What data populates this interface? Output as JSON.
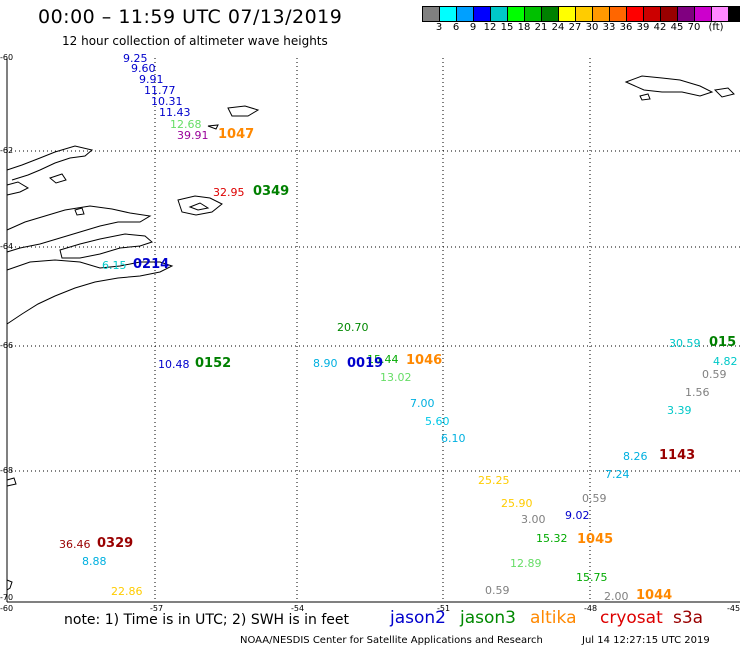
{
  "header": {
    "title": "00:00 – 11:59 UTC 07/13/2019",
    "subtitle": "12 hour collection of altimeter wave heights"
  },
  "legend": {
    "colors": [
      "#808080",
      "#00ffff",
      "#00a0ff",
      "#0000ff",
      "#00c8c8",
      "#00ff00",
      "#00c000",
      "#008000",
      "#ffff00",
      "#ffcc00",
      "#ff9900",
      "#ff6600",
      "#ff0000",
      "#cc0000",
      "#990000",
      "#800080",
      "#cc00cc",
      "#ff88ff",
      "#000000"
    ],
    "labels": [
      "3",
      "6",
      "9",
      "12",
      "15",
      "18",
      "21",
      "24",
      "27",
      "30",
      "33",
      "36",
      "39",
      "42",
      "45",
      "70",
      "(ft)"
    ]
  },
  "axes": {
    "lat_labels": [
      "-60",
      "-62",
      "-64",
      "-66",
      "-68",
      "-70"
    ],
    "lon_labels": [
      "-60",
      "-57",
      "-54",
      "-51",
      "-48",
      "-45"
    ]
  },
  "wave_heights": [
    {
      "text": "9.25",
      "color": "#0000cc"
    },
    {
      "text": "9.60",
      "color": "#0000cc"
    },
    {
      "text": "9.91",
      "color": "#0000cc"
    },
    {
      "text": "11.77",
      "color": "#0000cc"
    },
    {
      "text": "10.31",
      "color": "#0000cc"
    },
    {
      "text": "11.43",
      "color": "#0000cc"
    },
    {
      "text": "12.68",
      "color": "#66dd66"
    },
    {
      "text": "39.91",
      "color": "#990099"
    },
    {
      "text": "32.95",
      "color": "#dd0000"
    },
    {
      "text": "6.15",
      "color": "#00c8c8"
    },
    {
      "text": "10.48",
      "color": "#0000cc"
    },
    {
      "text": "20.70",
      "color": "#008800"
    },
    {
      "text": "8.90",
      "color": "#00b0e0"
    },
    {
      "text": "15.44",
      "color": "#00aa00"
    },
    {
      "text": "13.02",
      "color": "#66dd66"
    },
    {
      "text": "7.00",
      "color": "#00b0e0"
    },
    {
      "text": "5.60",
      "color": "#00c8e8"
    },
    {
      "text": "6.10",
      "color": "#00b0e0"
    },
    {
      "text": "30.59",
      "color": "#00c8c8"
    },
    {
      "text": "4.82",
      "color": "#00c8c8"
    },
    {
      "text": "0.59",
      "color": "#808080"
    },
    {
      "text": "1.56",
      "color": "#808080"
    },
    {
      "text": "3.39",
      "color": "#00c8c8"
    },
    {
      "text": "8.26",
      "color": "#00b0e0"
    },
    {
      "text": "7.24",
      "color": "#00b0e0"
    },
    {
      "text": "25.25",
      "color": "#ffcc00"
    },
    {
      "text": "0.59",
      "color": "#808080"
    },
    {
      "text": "25.90",
      "color": "#ffcc00"
    },
    {
      "text": "3.00",
      "color": "#808080"
    },
    {
      "text": "9.02",
      "color": "#0000cc"
    },
    {
      "text": "15.32",
      "color": "#00aa00"
    },
    {
      "text": "12.89",
      "color": "#66dd66"
    },
    {
      "text": "15.75",
      "color": "#00aa00"
    },
    {
      "text": "0.59",
      "color": "#808080"
    },
    {
      "text": "2.00",
      "color": "#808080"
    },
    {
      "text": "36.46",
      "color": "#990000"
    },
    {
      "text": "8.88",
      "color": "#00b0e0"
    },
    {
      "text": "22.86",
      "color": "#ffcc00"
    }
  ],
  "pass_times": [
    {
      "text": "1047",
      "color": "#ff8800"
    },
    {
      "text": "0349",
      "color": "#008000"
    },
    {
      "text": "0214",
      "color": "#0000cc"
    },
    {
      "text": "0152",
      "color": "#008000"
    },
    {
      "text": "0019",
      "color": "#0000cc"
    },
    {
      "text": "1046",
      "color": "#ff8800"
    },
    {
      "text": "015",
      "color": "#008000"
    },
    {
      "text": "1143",
      "color": "#990000"
    },
    {
      "text": "1045",
      "color": "#ff8800"
    },
    {
      "text": "1044",
      "color": "#ff8800"
    },
    {
      "text": "0329",
      "color": "#990000"
    }
  ],
  "footer": {
    "note": "note:  1) Time is in UTC;  2) SWH is in feet",
    "satellites": [
      {
        "name": "jason2",
        "color": "#0000cc"
      },
      {
        "name": "jason3",
        "color": "#008800"
      },
      {
        "name": "altika",
        "color": "#ff8800"
      },
      {
        "name": "cryosat",
        "color": "#dd0000"
      },
      {
        "name": "s3a",
        "color": "#990000"
      }
    ],
    "credit": "NOAA/NESDIS Center for Satellite Applications and Research",
    "timestamp": "Jul 14 12:27:15 UTC 2019"
  }
}
